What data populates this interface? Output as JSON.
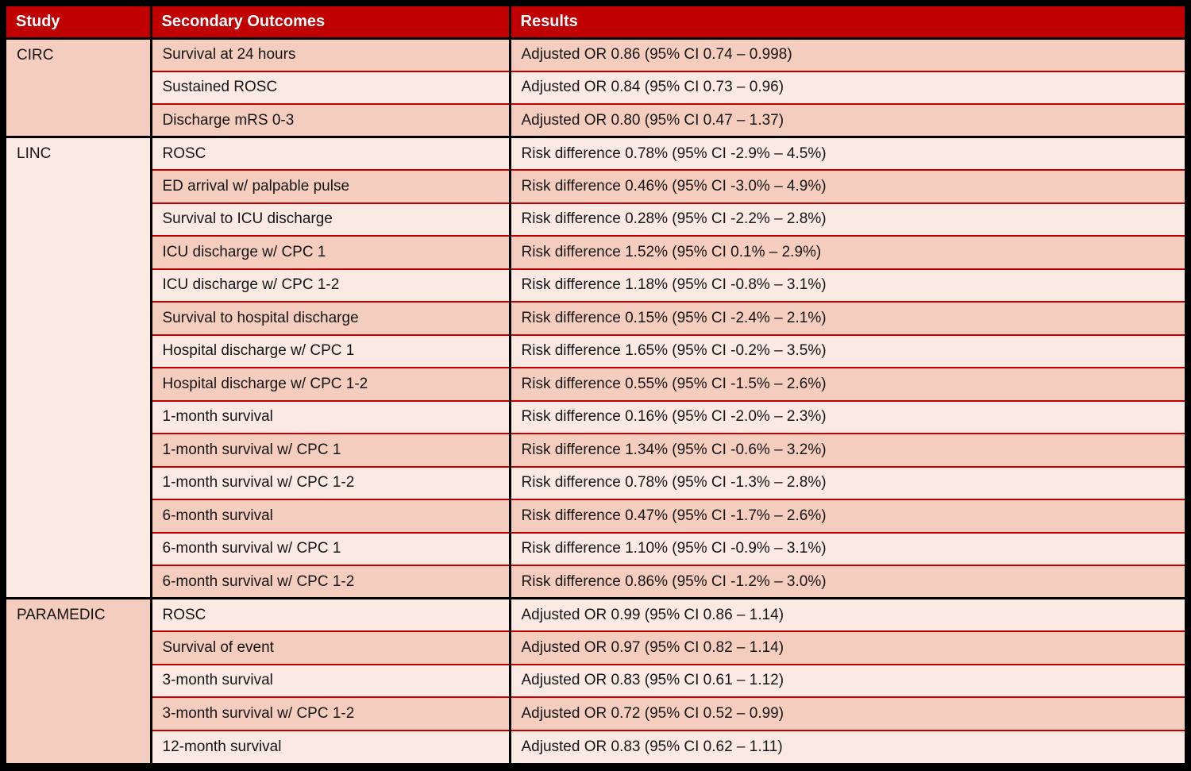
{
  "colors": {
    "header_bg": "#C00000",
    "header_text": "#FFFFFF",
    "band_dark": "#F4CDBF",
    "band_light": "#FBEAE4",
    "row_separator": "#C00000",
    "grid_border": "#000000"
  },
  "table": {
    "columns": [
      "Study",
      "Secondary Outcomes",
      "Results"
    ],
    "groups": [
      {
        "study": "CIRC",
        "rows": [
          {
            "outcome": "Survival at 24 hours",
            "result": "Adjusted OR 0.86 (95% CI 0.74 – 0.998)"
          },
          {
            "outcome": "Sustained ROSC",
            "result": "Adjusted OR 0.84 (95% CI 0.73 – 0.96)"
          },
          {
            "outcome": "Discharge mRS 0-3",
            "result": "Adjusted OR 0.80 (95% CI 0.47 – 1.37)"
          }
        ]
      },
      {
        "study": "LINC",
        "rows": [
          {
            "outcome": "ROSC",
            "result": "Risk difference 0.78% (95% CI -2.9% – 4.5%)"
          },
          {
            "outcome": "ED arrival w/ palpable pulse",
            "result": "Risk difference 0.46% (95% CI -3.0% – 4.9%)"
          },
          {
            "outcome": "Survival to ICU discharge",
            "result": "Risk difference 0.28% (95% CI -2.2% – 2.8%)"
          },
          {
            "outcome": "ICU discharge w/ CPC 1",
            "result": "Risk difference 1.52% (95% CI 0.1% – 2.9%)"
          },
          {
            "outcome": "ICU discharge w/ CPC 1-2",
            "result": "Risk difference 1.18% (95% CI -0.8% – 3.1%)"
          },
          {
            "outcome": "Survival to hospital discharge",
            "result": "Risk difference 0.15% (95% CI -2.4% – 2.1%)"
          },
          {
            "outcome": "Hospital discharge w/ CPC 1",
            "result": "Risk difference 1.65% (95% CI -0.2% – 3.5%)"
          },
          {
            "outcome": "Hospital discharge w/ CPC 1-2",
            "result": "Risk difference 0.55% (95% CI -1.5% – 2.6%)"
          },
          {
            "outcome": "1-month survival",
            "result": "Risk difference 0.16% (95% CI -2.0% – 2.3%)"
          },
          {
            "outcome": "1-month survival w/ CPC 1",
            "result": "Risk difference 1.34% (95% CI -0.6% – 3.2%)"
          },
          {
            "outcome": "1-month survival w/ CPC 1-2",
            "result": "Risk difference 0.78% (95% CI -1.3% – 2.8%)"
          },
          {
            "outcome": "6-month survival",
            "result": "Risk difference 0.47% (95% CI -1.7% – 2.6%)"
          },
          {
            "outcome": "6-month survival w/ CPC 1",
            "result": "Risk difference 1.10% (95% CI -0.9% – 3.1%)"
          },
          {
            "outcome": "6-month survival w/ CPC 1-2",
            "result": "Risk difference 0.86% (95% CI -1.2% – 3.0%)"
          }
        ]
      },
      {
        "study": "PARAMEDIC",
        "rows": [
          {
            "outcome": "ROSC",
            "result": "Adjusted OR 0.99 (95% CI 0.86 – 1.14)"
          },
          {
            "outcome": "Survival of event",
            "result": "Adjusted OR 0.97 (95% CI 0.82 – 1.14)"
          },
          {
            "outcome": "3-month survival",
            "result": "Adjusted OR 0.83 (95% CI 0.61 – 1.12)"
          },
          {
            "outcome": "3-month survival w/ CPC 1-2",
            "result": "Adjusted OR 0.72 (95% CI 0.52 – 0.99)"
          },
          {
            "outcome": "12-month survival",
            "result": "Adjusted OR 0.83 (95% CI 0.62 – 1.11)"
          }
        ]
      }
    ]
  }
}
